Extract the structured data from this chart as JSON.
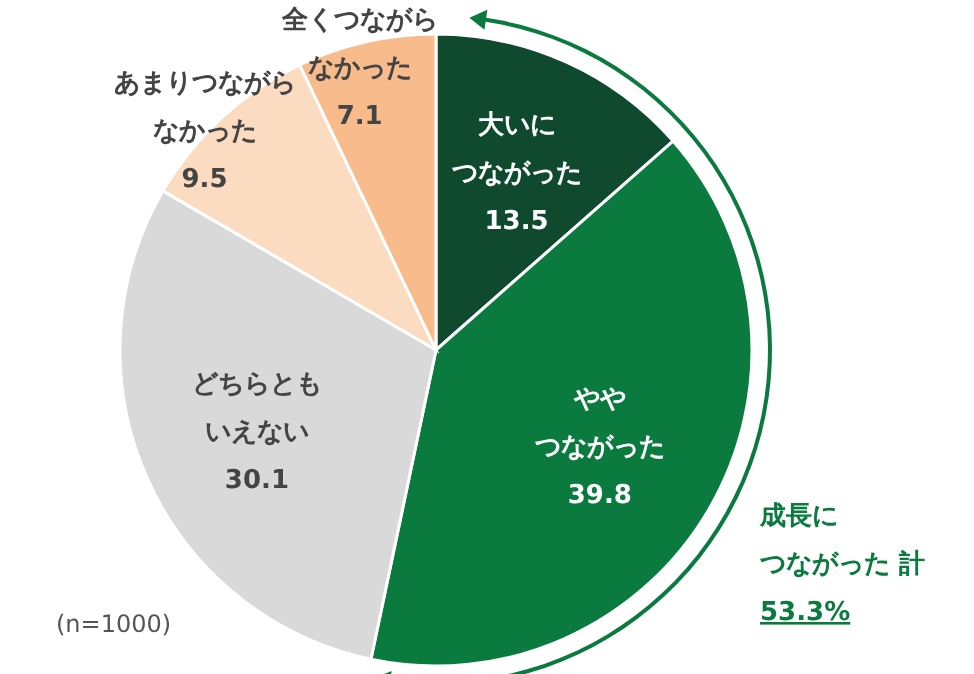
{
  "chart_data": {
    "type": "pie",
    "categories": [
      "大いにつながった",
      "ややつながった",
      "どちらともいえない",
      "あまりつながらなかった",
      "全くつながらなかった"
    ],
    "values": [
      13.5,
      39.8,
      30.1,
      9.5,
      7.1
    ],
    "colors": [
      "#0f4a2f",
      "#0b7a3f",
      "#d9d9d9",
      "#fcdcc0",
      "#f7bb8c"
    ],
    "data_labels": true,
    "annotations": [
      "成長につながった 計",
      "53.3%",
      "(n=1000)"
    ]
  }
}
